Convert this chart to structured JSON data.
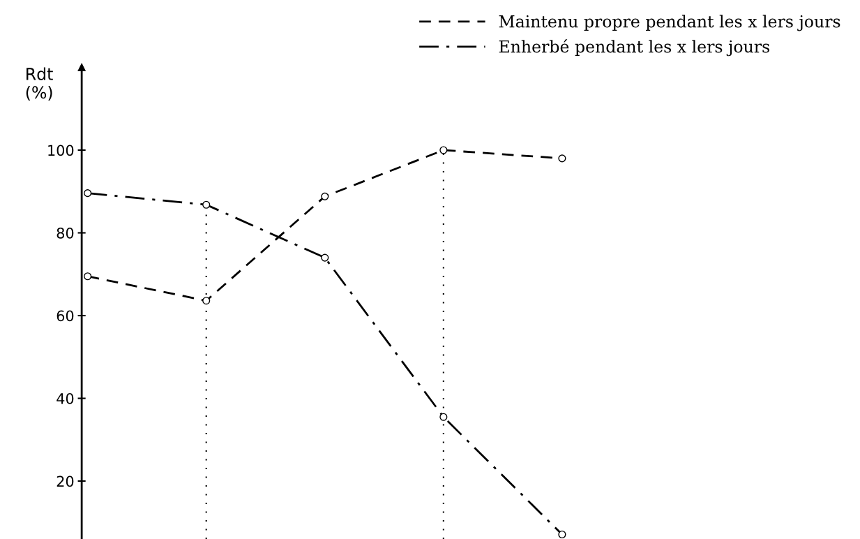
{
  "chart_data": {
    "type": "line",
    "ylabel": "Rdt\n(%)",
    "categories": [
      null,
      null,
      null,
      null,
      null
    ],
    "series": [
      {
        "name": "Maintenu propre pendant les x lers jours",
        "color": "#000000",
        "line_style": "dashed",
        "values": [
          69.5,
          63.6,
          88.8,
          100,
          98
        ]
      },
      {
        "name": "Enherbé pendant les x lers jours",
        "color": "#000000",
        "line_style": "dashdot",
        "values": [
          89.6,
          86.8,
          74,
          35.5,
          7.1
        ]
      }
    ],
    "ylim": [
      6,
      120
    ],
    "yticks": [
      20,
      40,
      60,
      80,
      100
    ],
    "marker": "circle",
    "grid": false,
    "legend": "top right",
    "tick_labels": "y"
  }
}
